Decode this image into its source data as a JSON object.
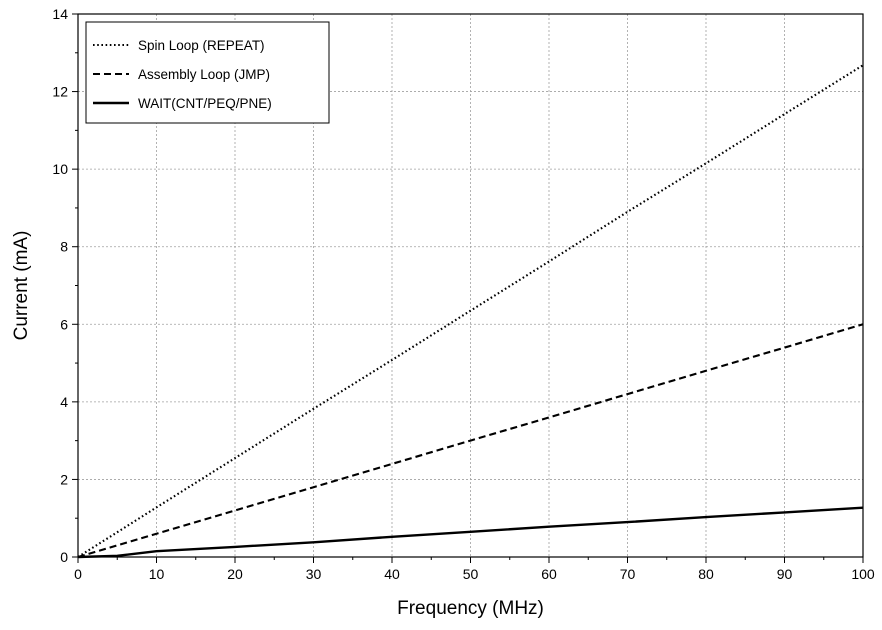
{
  "chart_data": {
    "type": "line",
    "title": "",
    "xlabel": "Frequency (MHz)",
    "ylabel": "Current (mA)",
    "xlim": [
      0,
      100
    ],
    "ylim": [
      0,
      14
    ],
    "xticks": [
      0,
      10,
      20,
      30,
      40,
      50,
      60,
      70,
      80,
      90,
      100
    ],
    "yticks": [
      0,
      2,
      4,
      6,
      8,
      10,
      12,
      14
    ],
    "grid": true,
    "legend_position": "top-left",
    "series": [
      {
        "name": "Spin Loop (REPEAT)",
        "line_style": "dotted",
        "x": [
          0,
          10,
          20,
          30,
          40,
          50,
          60,
          70,
          80,
          90,
          100
        ],
        "y": [
          0,
          1.28,
          2.55,
          3.82,
          5.08,
          6.35,
          7.62,
          8.9,
          10.15,
          11.42,
          12.68
        ]
      },
      {
        "name": "Assembly Loop (JMP)",
        "line_style": "dashed",
        "x": [
          0,
          10,
          20,
          30,
          40,
          50,
          60,
          70,
          80,
          90,
          100
        ],
        "y": [
          0,
          0.6,
          1.2,
          1.8,
          2.4,
          3.0,
          3.6,
          4.2,
          4.8,
          5.4,
          6.0
        ]
      },
      {
        "name": "WAIT(CNT/PEQ/PNE)",
        "line_style": "solid",
        "x": [
          0,
          5,
          10,
          20,
          30,
          40,
          50,
          60,
          70,
          80,
          90,
          100
        ],
        "y": [
          0,
          0.03,
          0.15,
          0.26,
          0.38,
          0.52,
          0.65,
          0.78,
          0.9,
          1.03,
          1.15,
          1.27
        ]
      }
    ]
  }
}
